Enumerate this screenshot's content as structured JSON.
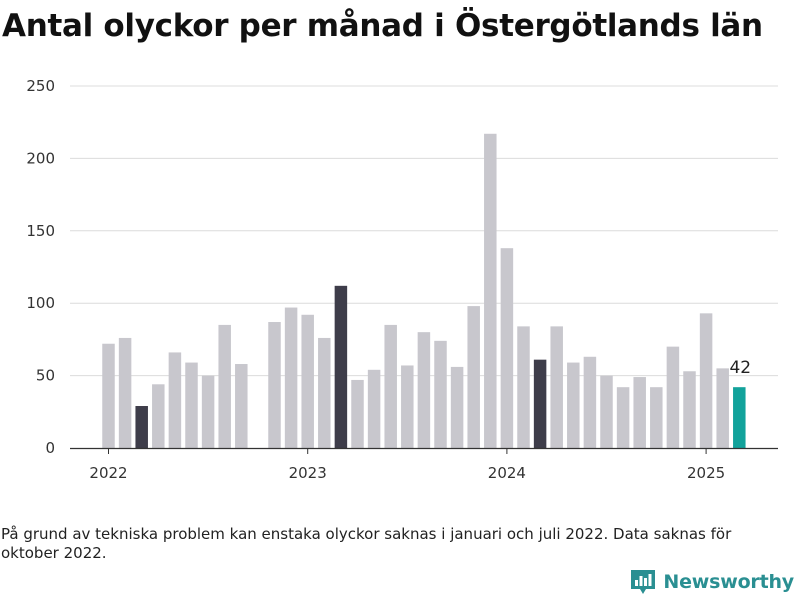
{
  "title": "Antal olyckor per månad i Östergötlands län",
  "note": "På grund av tekniska problem kan enstaka olyckor saknas i januari och juli 2022. Data saknas för oktober 2022.",
  "brand": {
    "label": "Newsworthy",
    "icon": "newsworthy-logo-icon",
    "color": "#2a8f92"
  },
  "colors": {
    "default": "#c8c7cd",
    "march": "#3e3d4a",
    "latest": "#12a29b",
    "grid": "#dcdcdc",
    "axis": "#333333"
  },
  "chart_data": {
    "type": "bar",
    "title": "Antal olyckor per månad i Östergötlands län",
    "xlabel": "",
    "ylabel": "",
    "ylim": [
      0,
      250
    ],
    "yticks": [
      0,
      50,
      100,
      150,
      200,
      250
    ],
    "xticks": [
      {
        "label": "2022",
        "month": "2022-01"
      },
      {
        "label": "2023",
        "month": "2023-01"
      },
      {
        "label": "2024",
        "month": "2024-01"
      },
      {
        "label": "2025",
        "month": "2025-01"
      }
    ],
    "grid": true,
    "highlight_annotation": {
      "month": "2025-03",
      "label": "42"
    },
    "points": [
      {
        "month": "2022-01",
        "value": 72,
        "group": "default"
      },
      {
        "month": "2022-02",
        "value": 76,
        "group": "default"
      },
      {
        "month": "2022-03",
        "value": 29,
        "group": "march"
      },
      {
        "month": "2022-04",
        "value": 44,
        "group": "default"
      },
      {
        "month": "2022-05",
        "value": 66,
        "group": "default"
      },
      {
        "month": "2022-06",
        "value": 59,
        "group": "default"
      },
      {
        "month": "2022-07",
        "value": 50,
        "group": "default"
      },
      {
        "month": "2022-08",
        "value": 85,
        "group": "default"
      },
      {
        "month": "2022-09",
        "value": 58,
        "group": "default"
      },
      {
        "month": "2022-10",
        "value": null,
        "group": "default"
      },
      {
        "month": "2022-11",
        "value": 87,
        "group": "default"
      },
      {
        "month": "2022-12",
        "value": 97,
        "group": "default"
      },
      {
        "month": "2023-01",
        "value": 92,
        "group": "default"
      },
      {
        "month": "2023-02",
        "value": 76,
        "group": "default"
      },
      {
        "month": "2023-03",
        "value": 112,
        "group": "march"
      },
      {
        "month": "2023-04",
        "value": 47,
        "group": "default"
      },
      {
        "month": "2023-05",
        "value": 54,
        "group": "default"
      },
      {
        "month": "2023-06",
        "value": 85,
        "group": "default"
      },
      {
        "month": "2023-07",
        "value": 57,
        "group": "default"
      },
      {
        "month": "2023-08",
        "value": 80,
        "group": "default"
      },
      {
        "month": "2023-09",
        "value": 74,
        "group": "default"
      },
      {
        "month": "2023-10",
        "value": 56,
        "group": "default"
      },
      {
        "month": "2023-11",
        "value": 98,
        "group": "default"
      },
      {
        "month": "2023-12",
        "value": 217,
        "group": "default"
      },
      {
        "month": "2024-01",
        "value": 138,
        "group": "default"
      },
      {
        "month": "2024-02",
        "value": 84,
        "group": "default"
      },
      {
        "month": "2024-03",
        "value": 61,
        "group": "march"
      },
      {
        "month": "2024-04",
        "value": 84,
        "group": "default"
      },
      {
        "month": "2024-05",
        "value": 59,
        "group": "default"
      },
      {
        "month": "2024-06",
        "value": 63,
        "group": "default"
      },
      {
        "month": "2024-07",
        "value": 50,
        "group": "default"
      },
      {
        "month": "2024-08",
        "value": 42,
        "group": "default"
      },
      {
        "month": "2024-09",
        "value": 49,
        "group": "default"
      },
      {
        "month": "2024-10",
        "value": 42,
        "group": "default"
      },
      {
        "month": "2024-11",
        "value": 70,
        "group": "default"
      },
      {
        "month": "2024-12",
        "value": 53,
        "group": "default"
      },
      {
        "month": "2025-01",
        "value": 93,
        "group": "default"
      },
      {
        "month": "2025-02",
        "value": 55,
        "group": "default"
      },
      {
        "month": "2025-03",
        "value": 42,
        "group": "latest"
      }
    ]
  }
}
